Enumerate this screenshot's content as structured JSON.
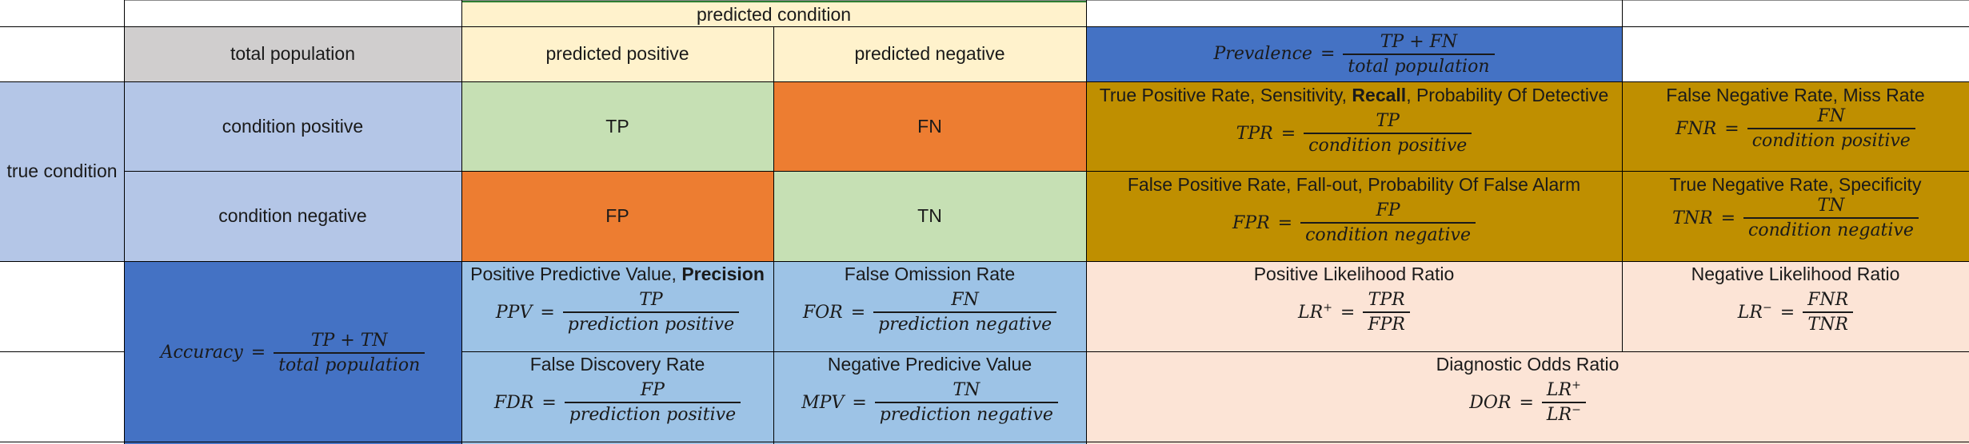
{
  "header": {
    "predicted_condition": "predicted condition",
    "total_population": "total population",
    "predicted_positive": "predicted positive",
    "predicted_negative": "predicted negative"
  },
  "prevalence": {
    "lhs": "Prevalence",
    "num": "TP + FN",
    "den": "total population"
  },
  "rows": {
    "true_condition": "true condition",
    "condition_positive": "condition positive",
    "condition_negative": "condition negative"
  },
  "matrix": {
    "tp": "TP",
    "fn": "FN",
    "fp": "FP",
    "tn": "TN"
  },
  "tpr": {
    "title_pre": "True Positive Rate, Sensitivity, ",
    "title_bold": "Recall",
    "title_post": ", Probability Of Detective",
    "lhs": "TPR",
    "num": "TP",
    "den": "condition positive"
  },
  "fnr": {
    "title": "False Negative Rate, Miss Rate",
    "lhs": "FNR",
    "num": "FN",
    "den": "condition positive"
  },
  "fpr": {
    "title": "False Positive Rate, Fall-out, Probability Of False Alarm",
    "lhs": "FPR",
    "num": "FP",
    "den": "condition negative"
  },
  "tnr": {
    "title": "True Negative Rate, Specificity",
    "lhs": "TNR",
    "num": "TN",
    "den": "condition negative"
  },
  "accuracy": {
    "lhs": "Accuracy",
    "num": "TP + TN",
    "den": "total population"
  },
  "ppv": {
    "title_pre": "Positive Predictive Value, ",
    "title_bold": "Precision",
    "lhs": "PPV",
    "num": "TP",
    "den": "prediction positive"
  },
  "for": {
    "title": "False Omission Rate",
    "lhs": "FOR",
    "num": "FN",
    "den": "prediction negative"
  },
  "lr_pos": {
    "title": "Positive Likelihood Ratio",
    "lhs": "LR",
    "lhs_sup": "+",
    "num": "TPR",
    "den": "FPR"
  },
  "lr_neg": {
    "title": "Negative Likelihood Ratio",
    "lhs": "LR",
    "lhs_sup": "−",
    "num": "FNR",
    "den": "TNR"
  },
  "fdr": {
    "title": "False Discovery Rate",
    "lhs": "FDR",
    "num": "FP",
    "den": "prediction positive"
  },
  "npv": {
    "title": "Negative Predicive Value",
    "lhs": "MPV",
    "num": "TN",
    "den": "prediction negative"
  },
  "dor": {
    "title": "Diagnostic Odds Ratio",
    "lhs": "DOR",
    "num": "LR",
    "num_sup": "+",
    "den": "LR",
    "den_sup": "−"
  }
}
